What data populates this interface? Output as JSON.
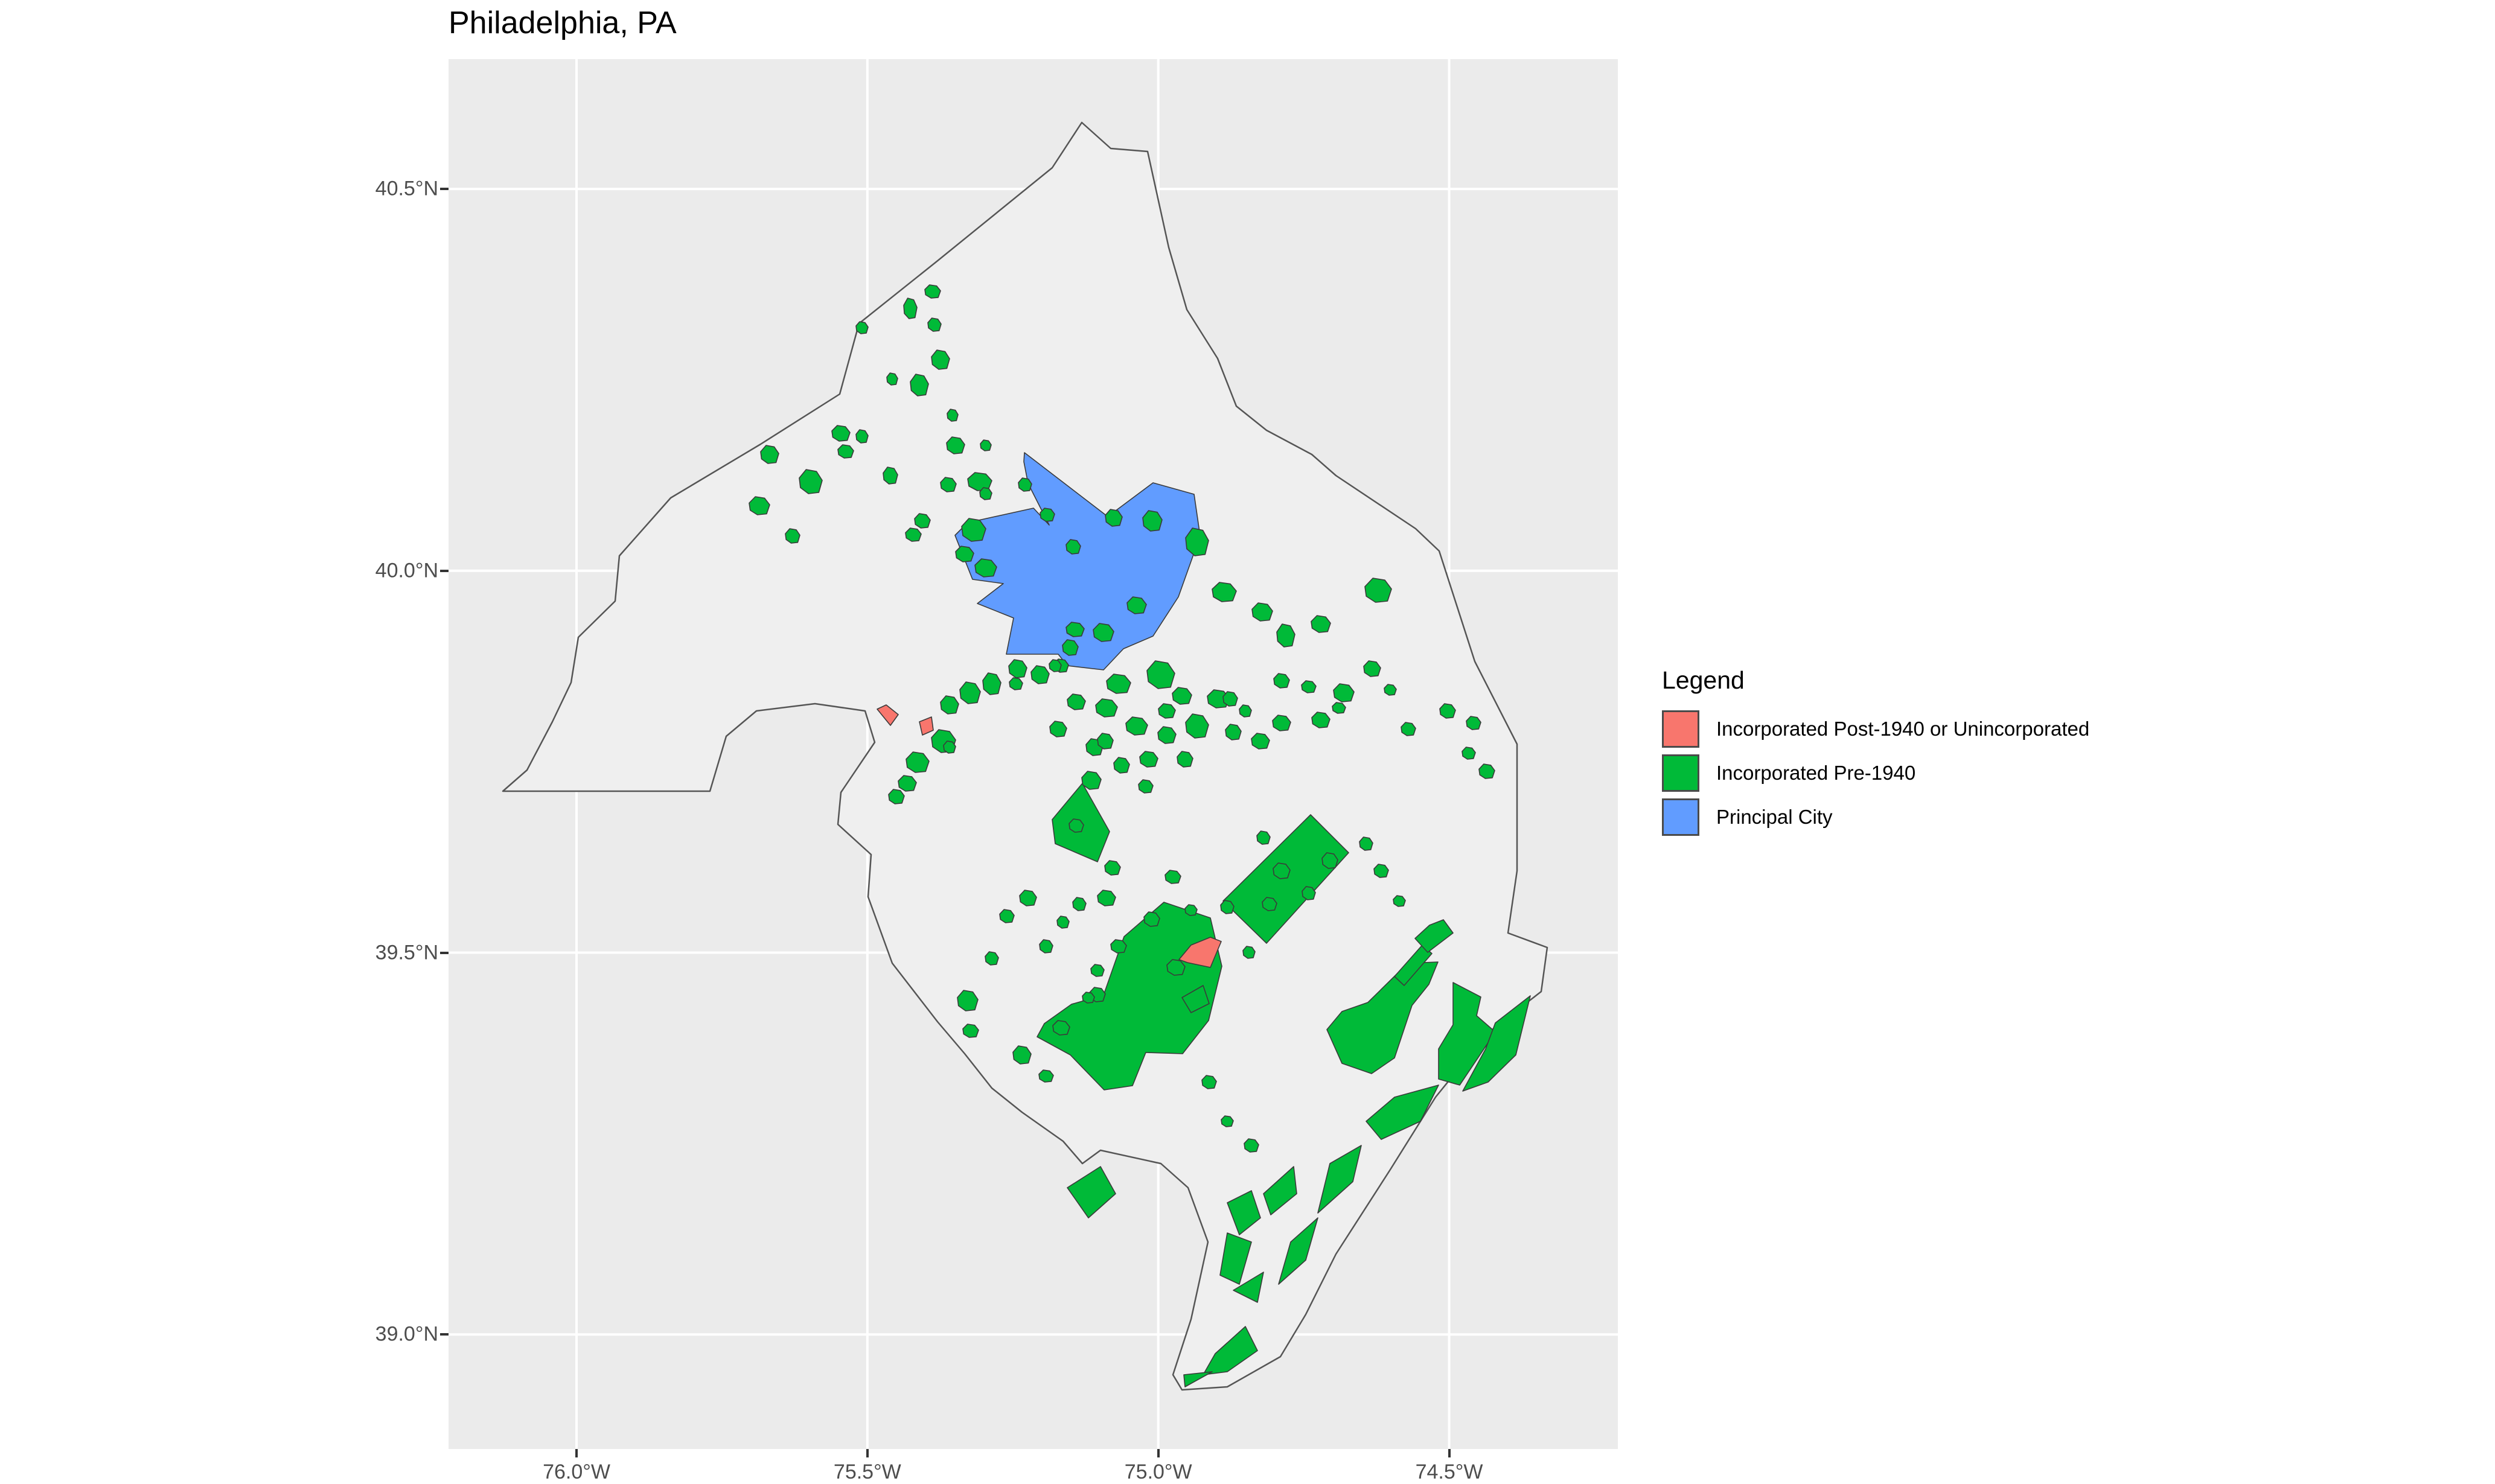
{
  "title": "Philadelphia, PA",
  "axes": {
    "x_ticks": [
      "76.0°W",
      "75.5°W",
      "75.0°W",
      "74.5°W"
    ],
    "x_values": [
      -76.0,
      -75.5,
      -75.0,
      -74.5
    ],
    "y_ticks": [
      "40.5°N",
      "40.0°N",
      "39.5°N",
      "39.0°N"
    ],
    "y_values": [
      40.5,
      40.0,
      39.5,
      39.0
    ],
    "x_range": [
      -76.22,
      -74.21
    ],
    "y_range": [
      38.85,
      40.67
    ]
  },
  "legend": {
    "title": "Legend",
    "items": [
      {
        "label": "Incorporated Post-1940 or Unincorporated",
        "color": "#f8766d"
      },
      {
        "label": "Incorporated Pre-1940",
        "color": "#00ba38"
      },
      {
        "label": "Principal City",
        "color": "#619cff"
      }
    ]
  },
  "colors": {
    "panel_background": "#ebebeb",
    "region_fill": "#efefef",
    "gridline": "#ffffff",
    "outline": "#555555"
  }
}
